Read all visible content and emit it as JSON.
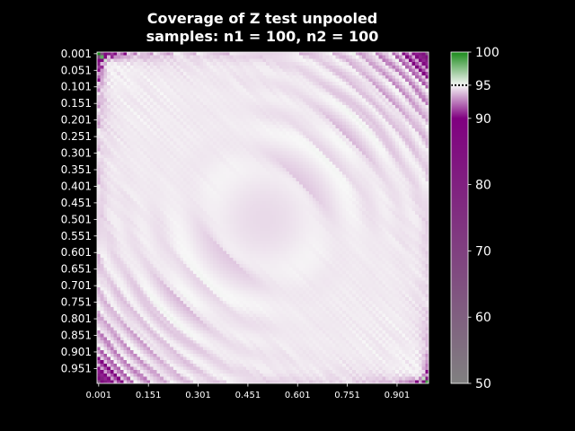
{
  "chart_data": {
    "type": "heatmap",
    "title": "Coverage of Z test unpooled",
    "subtitle": "samples: n1 = 100, n2 = 100",
    "xlabel": "",
    "ylabel": "",
    "p_start": 0.001,
    "p_step": 0.01,
    "grid_size": 100,
    "x_tick_labels": [
      "0.001",
      "0.151",
      "0.301",
      "0.451",
      "0.601",
      "0.751",
      "0.901"
    ],
    "y_tick_labels": [
      "0.001",
      "0.051",
      "0.101",
      "0.151",
      "0.201",
      "0.251",
      "0.301",
      "0.351",
      "0.401",
      "0.451",
      "0.501",
      "0.551",
      "0.601",
      "0.651",
      "0.701",
      "0.751",
      "0.801",
      "0.851",
      "0.901",
      "0.951"
    ],
    "value_range": [
      50,
      100
    ],
    "nominal_level": 95,
    "colorbar_ticks": [
      "50",
      "60",
      "70",
      "80",
      "90",
      "95",
      "100"
    ],
    "colorscale": [
      {
        "value": 50,
        "color": "#808080"
      },
      {
        "value": 90,
        "color": "#800080"
      },
      {
        "value": 95,
        "color": "#f7f7f7"
      },
      {
        "value": 100,
        "color": "#1a8a1a"
      }
    ],
    "grid": false
  }
}
